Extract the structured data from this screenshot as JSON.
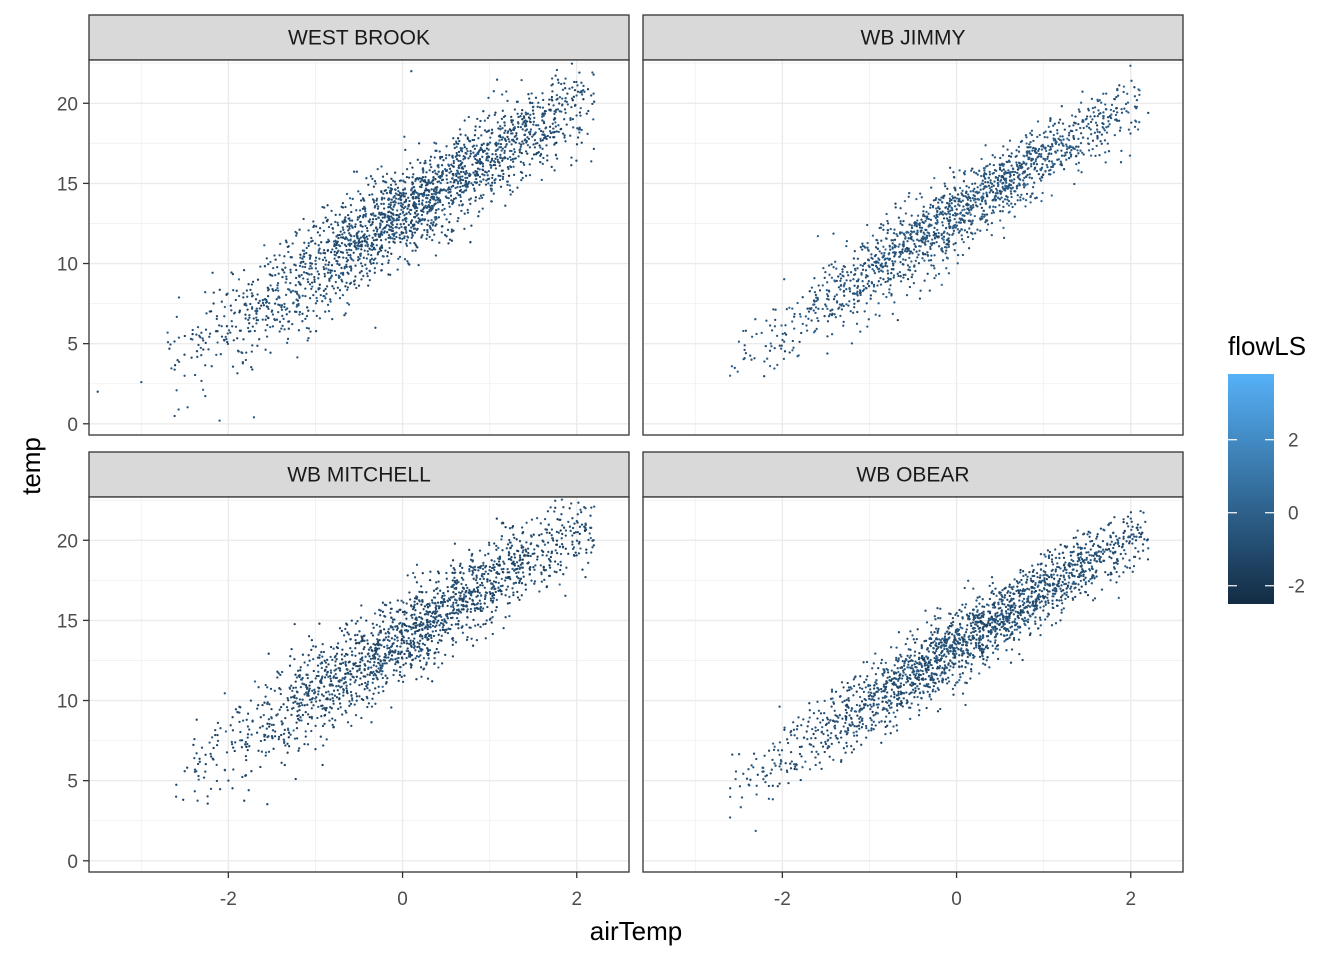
{
  "chart_data": {
    "type": "scatter",
    "facet_layout": "2x2",
    "xlabel": "airTemp",
    "ylabel": "temp",
    "xlim": [
      -3.6,
      2.6
    ],
    "ylim": [
      -0.7,
      22.7
    ],
    "x_ticks": [
      -2,
      0,
      2
    ],
    "y_ticks": [
      0,
      5,
      10,
      15,
      20
    ],
    "x_tick_labels": [
      "-2",
      "0",
      "2"
    ],
    "y_tick_labels": [
      "0",
      "5",
      "10",
      "15",
      "20"
    ],
    "grid": true,
    "color_scale": {
      "title": "flowLS",
      "range": [
        -2.5,
        3.8
      ],
      "low_color": "#132B43",
      "high_color": "#56B1F7",
      "ticks": [
        -2,
        0,
        2
      ],
      "tick_labels": [
        "-2",
        "0",
        "2"
      ],
      "legend_position": "right"
    },
    "panels": [
      {
        "name": "WEST BROOK",
        "n_points": 2200,
        "x_range": [
          -2.7,
          2.2
        ],
        "fit": {
          "slope": 3.5,
          "intercept": 13.2,
          "noise_sd": 1.55
        },
        "flowLS_mean": -0.8,
        "outliers": [
          {
            "x": -3.5,
            "y": 2.0
          },
          {
            "x": -3.0,
            "y": 2.6
          },
          {
            "x": -2.1,
            "y": 0.2
          },
          {
            "x": 0.1,
            "y": 22.0
          },
          {
            "x": 2.2,
            "y": 20.1
          }
        ]
      },
      {
        "name": "WB JIMMY",
        "n_points": 1600,
        "x_range": [
          -2.6,
          2.1
        ],
        "fit": {
          "slope": 3.55,
          "intercept": 13.1,
          "noise_sd": 1.2
        },
        "flowLS_mean": -0.5,
        "outliers": [
          {
            "x": -2.6,
            "y": 3.0
          },
          {
            "x": 2.1,
            "y": 20.8
          },
          {
            "x": 2.2,
            "y": 19.4
          }
        ]
      },
      {
        "name": "WB MITCHELL",
        "n_points": 1800,
        "x_range": [
          -2.6,
          2.2
        ],
        "fit": {
          "slope": 3.5,
          "intercept": 14.0,
          "noise_sd": 1.45
        },
        "flowLS_mean": -1.0,
        "outliers": [
          {
            "x": -2.6,
            "y": 4.0
          },
          {
            "x": 2.1,
            "y": 22.0
          },
          {
            "x": 2.2,
            "y": 22.1
          },
          {
            "x": 2.1,
            "y": 17.7
          }
        ]
      },
      {
        "name": "WB OBEAR",
        "n_points": 2000,
        "x_range": [
          -2.6,
          2.2
        ],
        "fit": {
          "slope": 3.5,
          "intercept": 13.4,
          "noise_sd": 1.2
        },
        "flowLS_mean": -0.8,
        "outliers": [
          {
            "x": -2.6,
            "y": 2.7
          },
          {
            "x": 2.2,
            "y": 19.5
          },
          {
            "x": 2.1,
            "y": 20.2
          }
        ]
      }
    ]
  }
}
